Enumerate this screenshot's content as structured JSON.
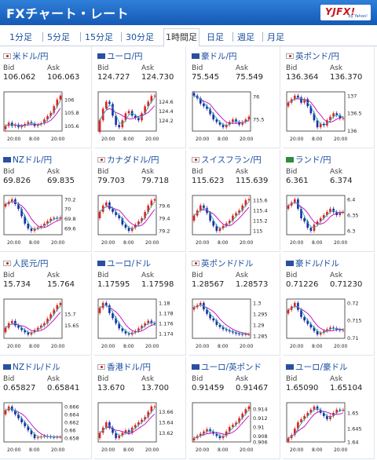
{
  "header": {
    "title": "FXチャート・レート",
    "logo_text": "YJFX!",
    "logo_sub": "by Yahoo!"
  },
  "tabs": [
    {
      "label": "1分足",
      "active": false
    },
    {
      "label": "5分足",
      "active": false
    },
    {
      "label": "15分足",
      "active": false
    },
    {
      "label": "30分足",
      "active": false
    },
    {
      "label": "1時間足",
      "active": true
    },
    {
      "label": "日足",
      "active": false
    },
    {
      "label": "週足",
      "active": false
    },
    {
      "label": "月足",
      "active": false
    }
  ],
  "labels": {
    "bid": "Bid",
    "ask": "Ask"
  },
  "colors": {
    "up": "#e02020",
    "down": "#1a2ca8",
    "ma1": "#c000c0",
    "ma2": "#2bb3a8"
  },
  "pairs": [
    {
      "name": "米ドル/円",
      "flag": "red",
      "bid": "106.062",
      "ask": "106.063",
      "ticks": [
        "106",
        "105.8",
        "105.6"
      ],
      "x_labels": [
        "20:00",
        "8:00",
        "20:00"
      ],
      "trend": [
        105.6,
        105.65,
        105.6,
        105.62,
        105.58,
        105.6,
        105.63,
        105.66,
        105.64,
        105.6,
        105.62,
        105.64,
        105.7,
        105.75,
        105.8,
        105.9,
        106.0,
        106.06
      ]
    },
    {
      "name": "ユーロ/円",
      "flag": "blue",
      "bid": "124.727",
      "ask": "124.730",
      "ticks": [
        "124.6",
        "124.4",
        "124.2"
      ],
      "x_labels": [
        "20:00",
        "8:00",
        "20:00"
      ],
      "trend": [
        124.2,
        124.45,
        124.6,
        124.55,
        124.3,
        124.1,
        124.05,
        124.2,
        124.35,
        124.4,
        124.3,
        124.25,
        124.2,
        124.35,
        124.5,
        124.6,
        124.72,
        124.73
      ]
    },
    {
      "name": "豪ドル/円",
      "flag": "blue",
      "bid": "75.545",
      "ask": "75.549",
      "ticks": [
        "76",
        "75.5"
      ],
      "x_labels": [
        "20:00",
        "8:00",
        "20:00"
      ],
      "trend": [
        75.95,
        75.9,
        75.8,
        75.75,
        75.7,
        75.6,
        75.5,
        75.45,
        75.4,
        75.35,
        75.4,
        75.45,
        75.5,
        75.45,
        75.4,
        75.45,
        75.5,
        75.55
      ]
    },
    {
      "name": "英ポンド/円",
      "flag": "red",
      "bid": "136.364",
      "ask": "136.370",
      "ticks": [
        "137",
        "136.5",
        "136"
      ],
      "x_labels": [
        "20:00",
        "8:00",
        "20:00"
      ],
      "trend": [
        136.8,
        136.9,
        137.0,
        136.95,
        136.8,
        136.9,
        136.7,
        136.5,
        136.3,
        136.1,
        136.2,
        136.15,
        136.3,
        136.4,
        136.5,
        136.45,
        136.35,
        136.36
      ]
    },
    {
      "name": "NZドル/円",
      "flag": "blue",
      "bid": "69.826",
      "ask": "69.835",
      "ticks": [
        "70.2",
        "70",
        "69.8",
        "69.6"
      ],
      "x_labels": [
        "20:00",
        "8:00",
        "20:00"
      ],
      "trend": [
        70.1,
        70.15,
        70.2,
        70.1,
        70.0,
        69.85,
        69.7,
        69.6,
        69.55,
        69.6,
        69.62,
        69.65,
        69.7,
        69.75,
        69.8,
        69.82,
        69.8,
        69.83
      ]
    },
    {
      "name": "カナダドル/円",
      "flag": "red",
      "bid": "79.703",
      "ask": "79.718",
      "ticks": [
        "79.6",
        "79.4",
        "79.2"
      ],
      "x_labels": [
        "20:00",
        "8:00",
        "20:00"
      ],
      "trend": [
        79.5,
        79.6,
        79.65,
        79.55,
        79.5,
        79.45,
        79.4,
        79.3,
        79.25,
        79.2,
        79.25,
        79.3,
        79.35,
        79.4,
        79.5,
        79.6,
        79.68,
        79.7
      ]
    },
    {
      "name": "スイスフラン/円",
      "flag": "red",
      "bid": "115.623",
      "ask": "115.639",
      "ticks": [
        "115.6",
        "115.4",
        "115.2",
        "115"
      ],
      "x_labels": [
        "20:00",
        "8:00",
        "20:00"
      ],
      "trend": [
        115.3,
        115.4,
        115.5,
        115.45,
        115.35,
        115.2,
        115.1,
        115.0,
        115.05,
        115.1,
        115.15,
        115.2,
        115.3,
        115.35,
        115.4,
        115.5,
        115.6,
        115.62
      ]
    },
    {
      "name": "ランド/円",
      "flag": "green",
      "bid": "6.361",
      "ask": "6.374",
      "ticks": [
        "6.4",
        "6.35",
        "6.3"
      ],
      "x_labels": [
        "20:00",
        "8:00",
        "20:00"
      ],
      "trend": [
        6.38,
        6.39,
        6.4,
        6.37,
        6.34,
        6.33,
        6.31,
        6.3,
        6.32,
        6.33,
        6.34,
        6.35,
        6.36,
        6.37,
        6.36,
        6.35,
        6.36,
        6.36
      ]
    },
    {
      "name": "人民元/円",
      "flag": "red",
      "bid": "15.734",
      "ask": "15.764",
      "ticks": [
        "15.7",
        "15.65"
      ],
      "x_labels": [
        "20:00",
        "8:00",
        "20:00"
      ],
      "trend": [
        15.64,
        15.66,
        15.67,
        15.65,
        15.64,
        15.63,
        15.62,
        15.61,
        15.62,
        15.63,
        15.64,
        15.65,
        15.66,
        15.68,
        15.7,
        15.72,
        15.74,
        15.75
      ]
    },
    {
      "name": "ユーロ/ドル",
      "flag": "blue",
      "bid": "1.17595",
      "ask": "1.17598",
      "ticks": [
        "1.18",
        "1.178",
        "1.176",
        "1.174"
      ],
      "x_labels": [
        "20:00",
        "8:00",
        "20:00"
      ],
      "trend": [
        1.179,
        1.18,
        1.1795,
        1.178,
        1.177,
        1.176,
        1.175,
        1.1745,
        1.174,
        1.1738,
        1.1742,
        1.1745,
        1.175,
        1.1755,
        1.176,
        1.1765,
        1.176,
        1.1759
      ]
    },
    {
      "name": "英ポンド/ドル",
      "flag": "red",
      "bid": "1.28567",
      "ask": "1.28573",
      "ticks": [
        "1.3",
        "1.295",
        "1.29",
        "1.285"
      ],
      "x_labels": [
        "20:00",
        "8:00",
        "20:00"
      ],
      "trend": [
        1.298,
        1.299,
        1.3,
        1.297,
        1.295,
        1.293,
        1.292,
        1.29,
        1.289,
        1.288,
        1.2875,
        1.287,
        1.2865,
        1.286,
        1.2858,
        1.2856,
        1.2857,
        1.2857
      ]
    },
    {
      "name": "豪ドル/ドル",
      "flag": "blue",
      "bid": "0.71226",
      "ask": "0.71230",
      "ticks": [
        "0.72",
        "0.715",
        "0.71"
      ],
      "x_labels": [
        "20:00",
        "8:00",
        "20:00"
      ],
      "trend": [
        0.718,
        0.719,
        0.72,
        0.718,
        0.716,
        0.715,
        0.714,
        0.713,
        0.712,
        0.711,
        0.7115,
        0.712,
        0.7125,
        0.713,
        0.7128,
        0.7124,
        0.7122,
        0.7123
      ]
    },
    {
      "name": "NZドル/ドル",
      "flag": "blue",
      "bid": "0.65827",
      "ask": "0.65841",
      "ticks": [
        "0.666",
        "0.664",
        "0.662",
        "0.66",
        "0.658"
      ],
      "x_labels": [
        "20:00",
        "8:00",
        "20:00"
      ],
      "trend": [
        0.665,
        0.666,
        0.665,
        0.664,
        0.663,
        0.662,
        0.661,
        0.66,
        0.659,
        0.658,
        0.6582,
        0.6584,
        0.6585,
        0.6584,
        0.6583,
        0.6582,
        0.6583,
        0.6583
      ]
    },
    {
      "name": "香港ドル/円",
      "flag": "red",
      "bid": "13.670",
      "ask": "13.700",
      "ticks": [
        "13.66",
        "13.64",
        "13.62"
      ],
      "x_labels": [
        "20:00",
        "8:00",
        "20:00"
      ],
      "trend": [
        13.62,
        13.63,
        13.64,
        13.63,
        13.62,
        13.61,
        13.615,
        13.62,
        13.625,
        13.62,
        13.63,
        13.635,
        13.64,
        13.645,
        13.65,
        13.66,
        13.67,
        13.67
      ]
    },
    {
      "name": "ユーロ/英ポンド",
      "flag": "blue",
      "bid": "0.91459",
      "ask": "0.91467",
      "ticks": [
        "0.914",
        "0.912",
        "0.91",
        "0.908",
        "0.906"
      ],
      "x_labels": [
        "20:00",
        "8:00",
        "20:00"
      ],
      "trend": [
        0.9075,
        0.908,
        0.9085,
        0.909,
        0.9095,
        0.909,
        0.9085,
        0.908,
        0.9075,
        0.908,
        0.909,
        0.91,
        0.9105,
        0.911,
        0.912,
        0.913,
        0.914,
        0.9146
      ]
    },
    {
      "name": "ユーロ/豪ドル",
      "flag": "blue",
      "bid": "1.65090",
      "ask": "1.65104",
      "ticks": [
        "1.65",
        "1.645",
        "1.64"
      ],
      "x_labels": [
        "20:00",
        "8:00",
        "20:00"
      ],
      "trend": [
        1.642,
        1.643,
        1.645,
        1.647,
        1.648,
        1.649,
        1.65,
        1.651,
        1.652,
        1.651,
        1.65,
        1.649,
        1.648,
        1.649,
        1.65,
        1.651,
        1.6509,
        1.6509
      ]
    }
  ]
}
